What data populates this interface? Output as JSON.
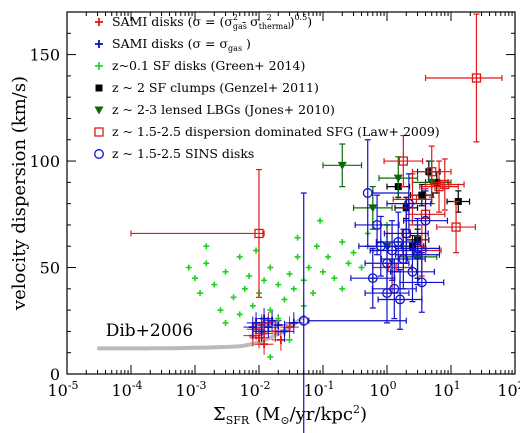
{
  "chart_data": {
    "type": "scatter",
    "xlabel": "Σ_SFR (M_⊙/yr/kpc²)",
    "ylabel": "velocity dispersion (km/s)",
    "xscale": "log",
    "xlim": [
      1e-05,
      100
    ],
    "ylim": [
      0,
      170
    ],
    "x_ticks": [
      1e-05,
      0.0001,
      0.001,
      0.01,
      0.1,
      1,
      10,
      100
    ],
    "x_tick_labels": [
      {
        "base": "10",
        "exp": "-5"
      },
      {
        "base": "10",
        "exp": "-4"
      },
      {
        "base": "10",
        "exp": "-3"
      },
      {
        "base": "10",
        "exp": "-2"
      },
      {
        "base": "10",
        "exp": "-1"
      },
      {
        "base": "10",
        "exp": "0"
      },
      {
        "base": "10",
        "exp": "1"
      },
      {
        "base": "10",
        "exp": "2"
      }
    ],
    "y_ticks": [
      0,
      50,
      100,
      150
    ],
    "y_tick_labels": [
      "0",
      "50",
      "100",
      "150"
    ],
    "grid": false,
    "legend_position": "top-left",
    "annotation": {
      "text": "Dib+2006",
      "x": 5e-05,
      "y": 15
    },
    "colors": {
      "sami_corr": "#e01818",
      "sami_gas": "#1010c8",
      "green": "#1dd11d",
      "black": "#000000",
      "lbg": "#0a6a0a",
      "law": "#e01818",
      "sins": "#1010c8",
      "dib": "#bbbbbb"
    },
    "series": [
      {
        "name": "SAMI disks (σ = (σ²_gas - σ²_thermal)^0.5)",
        "legend": [
          "SAMI disks (σ = (σ",
          "gas",
          "2",
          " - σ",
          "thermal",
          "2",
          ")",
          "0.5",
          ")"
        ],
        "marker": "plus",
        "color": "#e01818",
        "points": [
          [
            0.008,
            18
          ],
          [
            0.009,
            21
          ],
          [
            0.01,
            17
          ],
          [
            0.011,
            23
          ],
          [
            0.012,
            19
          ],
          [
            0.014,
            24
          ],
          [
            0.018,
            20
          ],
          [
            0.022,
            16
          ],
          [
            0.012,
            14
          ],
          [
            0.03,
            22
          ]
        ]
      },
      {
        "name": "SAMI disks (σ = σ_gas)",
        "legend": [
          "SAMI disks (σ = σ",
          "gas",
          "",
          " )"
        ],
        "marker": "plus",
        "color": "#1010c8",
        "points": [
          [
            0.008,
            22
          ],
          [
            0.009,
            24
          ],
          [
            0.011,
            20
          ],
          [
            0.012,
            26
          ],
          [
            0.014,
            22
          ],
          [
            0.016,
            25
          ],
          [
            0.02,
            23
          ],
          [
            0.025,
            20
          ],
          [
            0.035,
            24
          ]
        ]
      },
      {
        "name": "z~0.1 SF disks (Green+ 2014)",
        "legend": [
          "z~0.1 SF disks (Green+ 2014)"
        ],
        "marker": "cross",
        "color": "#1dd11d",
        "points": [
          [
            0.0008,
            50
          ],
          [
            0.001,
            45
          ],
          [
            0.0012,
            38
          ],
          [
            0.0015,
            52
          ],
          [
            0.002,
            42
          ],
          [
            0.0025,
            30
          ],
          [
            0.003,
            48
          ],
          [
            0.004,
            36
          ],
          [
            0.005,
            55
          ],
          [
            0.005,
            28
          ],
          [
            0.006,
            40
          ],
          [
            0.007,
            46
          ],
          [
            0.008,
            32
          ],
          [
            0.009,
            58
          ],
          [
            0.01,
            38
          ],
          [
            0.012,
            44
          ],
          [
            0.015,
            30
          ],
          [
            0.015,
            50
          ],
          [
            0.02,
            26
          ],
          [
            0.02,
            42
          ],
          [
            0.025,
            35
          ],
          [
            0.03,
            47
          ],
          [
            0.035,
            40
          ],
          [
            0.04,
            55
          ],
          [
            0.05,
            44
          ],
          [
            0.06,
            50
          ],
          [
            0.07,
            38
          ],
          [
            0.08,
            60
          ],
          [
            0.1,
            48
          ],
          [
            0.12,
            55
          ],
          [
            0.15,
            45
          ],
          [
            0.2,
            62
          ],
          [
            0.25,
            52
          ],
          [
            0.3,
            57
          ],
          [
            0.4,
            50
          ],
          [
            0.5,
            66
          ],
          [
            0.6,
            58
          ],
          [
            0.8,
            62
          ],
          [
            1.0,
            70
          ],
          [
            1.5,
            62
          ],
          [
            0.09,
            72
          ],
          [
            0.2,
            40
          ],
          [
            0.003,
            24
          ],
          [
            0.0015,
            60
          ],
          [
            0.05,
            32
          ],
          [
            0.03,
            16
          ],
          [
            0.04,
            64
          ],
          [
            0.6,
            45
          ],
          [
            1.2,
            53
          ],
          [
            0.015,
            8
          ]
        ]
      },
      {
        "name": "z ~ 2 SF clumps (Genzel+ 2011)",
        "legend": [
          "z ~ 2 SF clumps (Genzel+ 2011)"
        ],
        "marker": "square-filled",
        "color": "#000000",
        "points": [
          [
            1.5,
            88
          ],
          [
            2.0,
            78
          ],
          [
            3.0,
            63
          ],
          [
            3.5,
            84
          ],
          [
            4.5,
            95
          ],
          [
            6.0,
            90
          ],
          [
            13.0,
            81
          ],
          [
            2.5,
            60
          ]
        ],
        "xerr_factor": 1.5,
        "yerr": 5
      },
      {
        "name": "z ~ 2-3 lensed LBGs (Jones+ 2010)",
        "legend": [
          "z ~ 2-3 lensed LBGs (Jones+ 2010)"
        ],
        "marker": "triangle-down",
        "color": "#0a6a0a",
        "points": [
          [
            0.2,
            98
          ],
          [
            0.6,
            78
          ],
          [
            1.5,
            92
          ],
          [
            3.0,
            55
          ],
          [
            5.0,
            90
          ],
          [
            1.0,
            60
          ]
        ],
        "xerr_factor": 2.0,
        "yerr": 10
      },
      {
        "name": "z ~ 1.5-2.5 dispersion dominated SFG (Law+ 2009)",
        "legend": [
          "z ~ 1.5-2.5 dispersion dominated SFG (Law+ 2009)"
        ],
        "marker": "square-open",
        "color": "#e01818",
        "points": [
          [
            0.01,
            66
          ],
          [
            1.8,
            100
          ],
          [
            2.5,
            82
          ],
          [
            3.5,
            58
          ],
          [
            5.0,
            95
          ],
          [
            6.5,
            88
          ],
          [
            8.0,
            89
          ],
          [
            12.0,
            69
          ],
          [
            25.0,
            139
          ],
          [
            1.2,
            50
          ],
          [
            4.0,
            75
          ],
          [
            2.0,
            66
          ]
        ],
        "xerr_factor": 2.0,
        "yerr": 12,
        "errors": [
          [
            0.01,
            1,
            0.0001,
            30
          ],
          [
            25.0,
            1,
            4.0,
            30
          ]
        ]
      },
      {
        "name": "z ~ 1.5-2.5 SINS disks",
        "legend": [
          "z ~ 1.5-2.5 SINS disks"
        ],
        "marker": "circle-open",
        "color": "#1010c8",
        "points": [
          [
            0.05,
            25
          ],
          [
            0.5,
            85
          ],
          [
            0.6,
            45
          ],
          [
            0.8,
            60
          ],
          [
            1.0,
            52
          ],
          [
            1.2,
            58
          ],
          [
            1.3,
            40
          ],
          [
            1.5,
            62
          ],
          [
            1.8,
            54
          ],
          [
            2.0,
            66
          ],
          [
            2.5,
            48
          ],
          [
            3.0,
            56
          ],
          [
            3.5,
            43
          ],
          [
            4.0,
            72
          ],
          [
            1.0,
            38
          ],
          [
            0.7,
            70
          ],
          [
            2.2,
            80
          ],
          [
            3.0,
            59
          ],
          [
            1.6,
            35
          ]
        ],
        "xerr_factor": 2.2,
        "yerr": 14,
        "errors": [
          [
            0.05,
            1,
            2.0,
            60
          ],
          [
            0.5,
            1,
            2.2,
            25
          ]
        ]
      }
    ]
  }
}
